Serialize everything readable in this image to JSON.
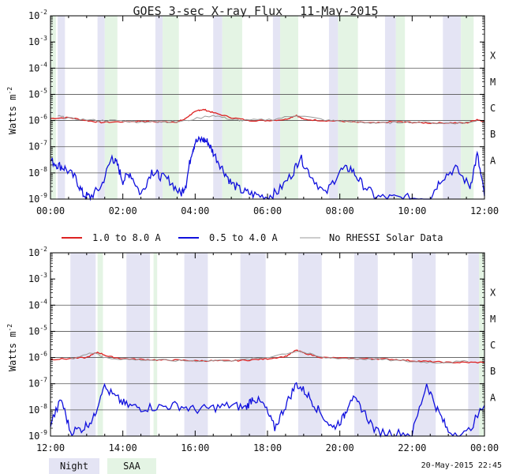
{
  "title": "GOES 3-sec X-ray Flux",
  "date": "11-May-2015",
  "ylabel": "Watts m",
  "ylabel_exp": "-2",
  "flare_classes": [
    "X",
    "M",
    "C",
    "B",
    "A"
  ],
  "flare_class_exponents": [
    -4,
    -5,
    -6,
    -7,
    -8
  ],
  "legend": {
    "long": "1.0 to 8.0 A",
    "short": "0.5 to 4.0 A",
    "gray": "No RHESSI Solar Data"
  },
  "shading_legend": {
    "night": "Night",
    "saa": "SAA"
  },
  "timestamp": "20-May-2015 22:45",
  "colors": {
    "long": "#dd2222",
    "short": "#1010dd",
    "gray": "#999999",
    "night": "#e4e4f4",
    "saa": "#e4f4e4",
    "grid": "#555555"
  },
  "chart_data": [
    {
      "type": "line",
      "x_unit": "hours UT",
      "xlim": [
        0,
        12
      ],
      "ylim_log10": [
        -9,
        -2
      ],
      "yscale": "log",
      "x_tick_labels": [
        "00:00",
        "02:00",
        "04:00",
        "06:00",
        "08:00",
        "10:00",
        "12:00"
      ],
      "y_tick_exponents": [
        -9,
        -8,
        -7,
        -6,
        -5,
        -4,
        -3,
        -2
      ],
      "grid": "horizontal at flare-class boundaries",
      "night_bands": [
        [
          0.2,
          0.4
        ],
        [
          1.3,
          1.5
        ],
        [
          2.9,
          3.1
        ],
        [
          4.5,
          4.75
        ],
        [
          6.15,
          6.35
        ],
        [
          7.7,
          7.95
        ],
        [
          9.25,
          9.55
        ],
        [
          10.85,
          11.35
        ]
      ],
      "saa_bands": [
        [
          0.0,
          0.15
        ],
        [
          1.5,
          1.85
        ],
        [
          3.1,
          3.55
        ],
        [
          4.75,
          5.3
        ],
        [
          6.35,
          6.85
        ],
        [
          7.95,
          8.5
        ],
        [
          9.55,
          9.8
        ],
        [
          11.35,
          11.7
        ]
      ],
      "series": [
        {
          "name": "1.0 to 8.0 A",
          "color": "red",
          "x": [
            0.0,
            0.5,
            1.0,
            1.4,
            2.0,
            2.5,
            3.0,
            3.5,
            3.7,
            3.9,
            4.1,
            4.25,
            4.5,
            5.0,
            5.5,
            6.0,
            6.5,
            6.8,
            7.0,
            7.5,
            8.0,
            8.5,
            9.0,
            9.5,
            10.0,
            10.5,
            11.0,
            11.5,
            11.8,
            12.0
          ],
          "values": [
            1.2e-06,
            1.3e-06,
            1e-06,
            8.5e-07,
            9e-07,
            9.5e-07,
            8.8e-07,
            9e-07,
            1.1e-06,
            1.8e-06,
            2.5e-06,
            2.6e-06,
            2e-06,
            1.3e-06,
            1e-06,
            1e-06,
            1.1e-06,
            1.6e-06,
            1.1e-06,
            1e-06,
            9.5e-07,
            8.5e-07,
            8e-07,
            9e-07,
            8.5e-07,
            8e-07,
            8.2e-07,
            8e-07,
            1.1e-06,
            9e-07
          ]
        },
        {
          "name": "0.5 to 4.0 A",
          "color": "blue",
          "x": [
            0.0,
            0.2,
            0.4,
            0.7,
            0.9,
            1.1,
            1.4,
            1.7,
            1.85,
            2.0,
            2.2,
            2.5,
            2.8,
            3.0,
            3.3,
            3.6,
            3.75,
            3.9,
            4.0,
            4.2,
            4.35,
            4.5,
            4.75,
            5.0,
            5.3,
            5.6,
            6.0,
            6.3,
            6.7,
            6.9,
            7.2,
            7.6,
            8.0,
            8.3,
            8.6,
            9.0,
            9.5,
            10.0,
            10.5,
            10.8,
            11.2,
            11.6,
            11.8,
            12.0
          ],
          "values": [
            3e-08,
            2e-08,
            1.5e-08,
            6e-09,
            1.5e-09,
            1.2e-09,
            3e-09,
            4e-08,
            2e-08,
            5e-09,
            1e-08,
            1.5e-09,
            1.2e-08,
            8e-09,
            5e-09,
            1.5e-09,
            4e-09,
            6e-08,
            1.5e-07,
            1.9e-07,
            1.5e-07,
            6e-08,
            1.5e-08,
            4e-09,
            2e-09,
            1.5e-09,
            1.2e-09,
            2e-09,
            1e-08,
            4e-08,
            8e-09,
            1.5e-09,
            1.2e-08,
            1.5e-08,
            4e-09,
            1.2e-09,
            1.1e-09,
            1.1e-09,
            1.2e-09,
            6e-09,
            1.5e-08,
            3e-09,
            5e-08,
            1.3e-09
          ]
        },
        {
          "name": "No RHESSI Solar Data",
          "color": "gray",
          "x": [
            0.2,
            0.5,
            1.3,
            1.85,
            2.3,
            2.9,
            3.0,
            3.6,
            4.5,
            5.0,
            5.3,
            6.15,
            6.8,
            7.7,
            8.2,
            8.6,
            9.25,
            9.8,
            10.85,
            11.4,
            11.8
          ],
          "values": [
            1.5e-06,
            1.2e-06,
            1e-06,
            1e-06,
            9e-07,
            9e-07,
            9e-07,
            9e-07,
            1.6e-06,
            1.1e-06,
            1e-06,
            1.1e-06,
            1.6e-06,
            1e-06,
            9.5e-07,
            8.5e-07,
            8e-07,
            9e-07,
            8e-07,
            8e-07,
            1e-06
          ]
        }
      ]
    },
    {
      "type": "line",
      "x_unit": "hours UT",
      "xlim": [
        12,
        24
      ],
      "ylim_log10": [
        -9,
        -2
      ],
      "yscale": "log",
      "x_tick_labels": [
        "12:00",
        "14:00",
        "16:00",
        "18:00",
        "20:00",
        "22:00",
        "00:00"
      ],
      "y_tick_exponents": [
        -9,
        -8,
        -7,
        -6,
        -5,
        -4,
        -3,
        -2
      ],
      "grid": "horizontal at flare-class boundaries",
      "night_bands": [
        [
          12.55,
          13.25
        ],
        [
          14.1,
          14.75
        ],
        [
          15.7,
          16.35
        ],
        [
          17.25,
          17.95
        ],
        [
          18.85,
          19.5
        ],
        [
          20.4,
          21.05
        ],
        [
          22.0,
          22.65
        ],
        [
          23.55,
          23.85
        ]
      ],
      "saa_bands": [
        [
          13.3,
          13.45
        ],
        [
          14.85,
          14.95
        ],
        [
          23.85,
          24.0
        ]
      ],
      "series": [
        {
          "name": "1.0 to 8.0 A",
          "color": "red",
          "x": [
            12.0,
            12.5,
            13.0,
            13.3,
            13.6,
            14.0,
            14.5,
            15.0,
            15.5,
            16.0,
            16.5,
            17.0,
            17.5,
            18.0,
            18.5,
            18.8,
            19.0,
            19.5,
            20.0,
            20.5,
            21.0,
            21.5,
            22.0,
            22.5,
            23.0,
            23.5,
            24.0
          ],
          "values": [
            8.5e-07,
            9e-07,
            1e-06,
            1.6e-06,
            1.1e-06,
            9e-07,
            8.5e-07,
            8e-07,
            8e-07,
            7.5e-07,
            7.5e-07,
            7.5e-07,
            8e-07,
            9e-07,
            1.1e-06,
            1.9e-06,
            1.5e-06,
            1e-06,
            9.5e-07,
            9e-07,
            9e-07,
            8.5e-07,
            7.5e-07,
            7e-07,
            6.5e-07,
            6.5e-07,
            6.5e-07
          ]
        },
        {
          "name": "0.5 to 4.0 A",
          "color": "blue",
          "x": [
            12.0,
            12.3,
            12.55,
            12.9,
            13.2,
            13.45,
            13.8,
            14.1,
            14.5,
            15.0,
            15.5,
            16.0,
            16.5,
            17.0,
            17.4,
            17.6,
            17.9,
            18.2,
            18.5,
            18.8,
            19.1,
            19.4,
            19.8,
            20.1,
            20.3,
            20.6,
            21.0,
            21.5,
            22.0,
            22.4,
            22.7,
            23.0,
            23.5,
            24.0
          ],
          "values": [
            3e-09,
            2.5e-08,
            1.5e-09,
            2e-09,
            5e-09,
            8e-08,
            3e-08,
            1.5e-08,
            1.2e-08,
            1.3e-08,
            1.5e-08,
            1e-08,
            1.2e-08,
            1.5e-08,
            1.2e-08,
            3e-08,
            1.5e-08,
            2e-09,
            1.5e-08,
            1e-07,
            4e-08,
            1e-08,
            2e-09,
            5e-09,
            3e-08,
            1.2e-08,
            1.5e-09,
            1.3e-09,
            1.2e-09,
            1e-07,
            1e-08,
            1.5e-09,
            1.2e-09,
            1.5e-08
          ]
        },
        {
          "name": "No RHESSI Solar Data",
          "color": "gray",
          "x": [
            12.55,
            13.25,
            13.45,
            14.1,
            14.75,
            15.7,
            16.35,
            17.25,
            17.95,
            18.85,
            19.5,
            20.4,
            21.05,
            22.0,
            22.65,
            23.55
          ],
          "values": [
            9e-07,
            1.6e-06,
            1e-06,
            8.5e-07,
            8e-07,
            7.5e-07,
            7.5e-07,
            8e-07,
            1e-06,
            1.8e-06,
            1e-06,
            9e-07,
            8.5e-07,
            7e-07,
            6.5e-07,
            7e-07
          ]
        }
      ]
    }
  ]
}
